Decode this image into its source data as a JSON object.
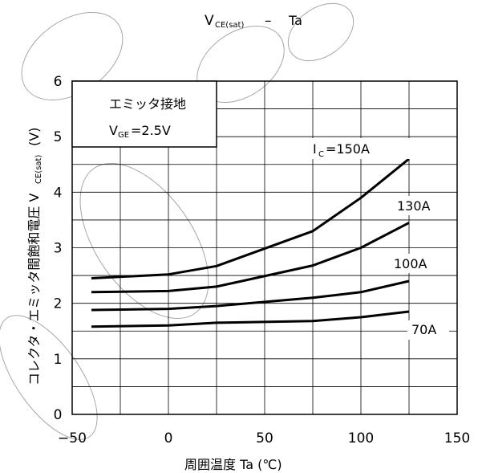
{
  "chart_data": {
    "type": "line",
    "title_main": "V",
    "title_sub": "CE(sat)",
    "title_sep": "–",
    "title_right": "Ta",
    "xlabel": "周囲温度 Ta (℃)",
    "ylabel_main": "コレクタ・エミッタ間飽和電圧 V",
    "ylabel_sub": "CE(sat)",
    "ylabel_unit": "(V)",
    "xlim": [
      -50,
      150
    ],
    "ylim": [
      0,
      6
    ],
    "xticks": [
      -50,
      0,
      50,
      100,
      150
    ],
    "xtick_labels": [
      "−50",
      "0",
      "50",
      "100",
      "150"
    ],
    "yticks": [
      0,
      1,
      2,
      3,
      4,
      5,
      6
    ],
    "yticks_labels": [
      "0",
      "1",
      "2",
      "3",
      "4",
      "5",
      "6"
    ],
    "grid": true,
    "legend_box": {
      "line1": "エミッタ接地",
      "line2_main": "V",
      "line2_sub": "GE",
      "line2_rest": "=2.5V"
    },
    "series": [
      {
        "name": "I_C=150A",
        "label_main": "I",
        "label_sub": "C",
        "label_rest": "=150A",
        "x": [
          -40,
          0,
          25,
          75,
          100,
          125
        ],
        "y": [
          2.45,
          2.52,
          2.67,
          3.3,
          3.9,
          4.6
        ]
      },
      {
        "name": "130A",
        "label_main": "130A",
        "label_sub": "",
        "label_rest": "",
        "x": [
          -40,
          0,
          25,
          75,
          100,
          125
        ],
        "y": [
          2.2,
          2.22,
          2.3,
          2.68,
          3.0,
          3.45
        ]
      },
      {
        "name": "100A",
        "label_main": "100A",
        "label_sub": "",
        "label_rest": "",
        "x": [
          -40,
          0,
          25,
          75,
          100,
          125
        ],
        "y": [
          1.88,
          1.9,
          1.95,
          2.1,
          2.2,
          2.4
        ]
      },
      {
        "name": "70A",
        "label_main": "70A",
        "label_sub": "",
        "label_rest": "",
        "x": [
          -40,
          0,
          25,
          75,
          100,
          125
        ],
        "y": [
          1.58,
          1.6,
          1.65,
          1.68,
          1.75,
          1.85
        ]
      }
    ]
  }
}
